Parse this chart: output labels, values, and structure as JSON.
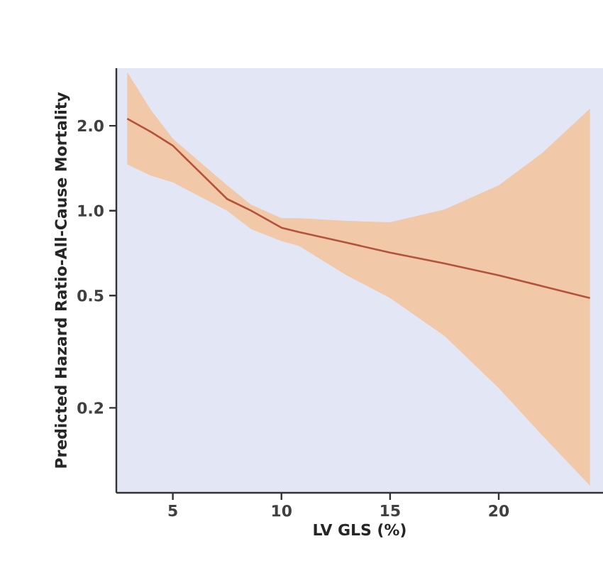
{
  "chart_data": {
    "type": "line",
    "xlabel": "LV GLS (%)",
    "ylabel": "Predicted Hazard Ratio-All-Cause Mortality",
    "series": [
      {
        "color": "#b5523a",
        "x": [
          2.9,
          4,
          5,
          7.5,
          8.6,
          10,
          10.8,
          13,
          15,
          17.5,
          20,
          22,
          24.2
        ],
        "values": [
          2.12,
          1.9,
          1.7,
          1.1,
          1.0,
          0.87,
          0.84,
          0.77,
          0.71,
          0.65,
          0.59,
          0.54,
          0.49
        ],
        "upper": [
          3.1,
          2.27,
          1.8,
          1.23,
          1.05,
          0.94,
          0.94,
          0.92,
          0.91,
          1.01,
          1.23,
          1.6,
          2.3
        ],
        "lower": [
          1.46,
          1.33,
          1.26,
          1.0,
          0.86,
          0.78,
          0.75,
          0.59,
          0.49,
          0.36,
          0.235,
          0.16,
          0.106
        ]
      }
    ],
    "log": "y",
    "xlim": [
      2.4,
      24.8
    ],
    "ylim": [
      0.1,
      3.2
    ],
    "xticks": [
      5,
      10,
      15,
      20
    ],
    "yticks": [
      {
        "value": 0.2,
        "label": "0.2"
      },
      {
        "value": 0.5,
        "label": "0.5"
      },
      {
        "value": 1,
        "label": "1.0"
      },
      {
        "value": 2,
        "label": "2.0"
      }
    ],
    "grid": false,
    "marker": "none",
    "line_style": "solid"
  }
}
